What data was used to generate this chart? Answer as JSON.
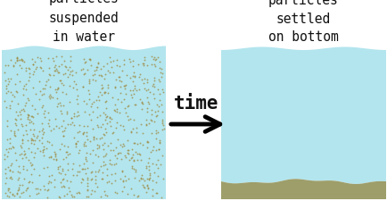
{
  "bg_color": "#ffffff",
  "water_color": "#b3e5ee",
  "sediment_color": "#9e9e6a",
  "particle_color": "#9e8a40",
  "left_title": "particles\nsuspended\nin water",
  "right_title": "particles\nsettled\non bottom",
  "arrow_label": "time",
  "title_fontsize": 10.5,
  "arrow_fontsize": 15,
  "wave_color": "#a0d8e4",
  "n_particles": 900,
  "particle_size": 1.8,
  "particle_alpha": 0.75
}
